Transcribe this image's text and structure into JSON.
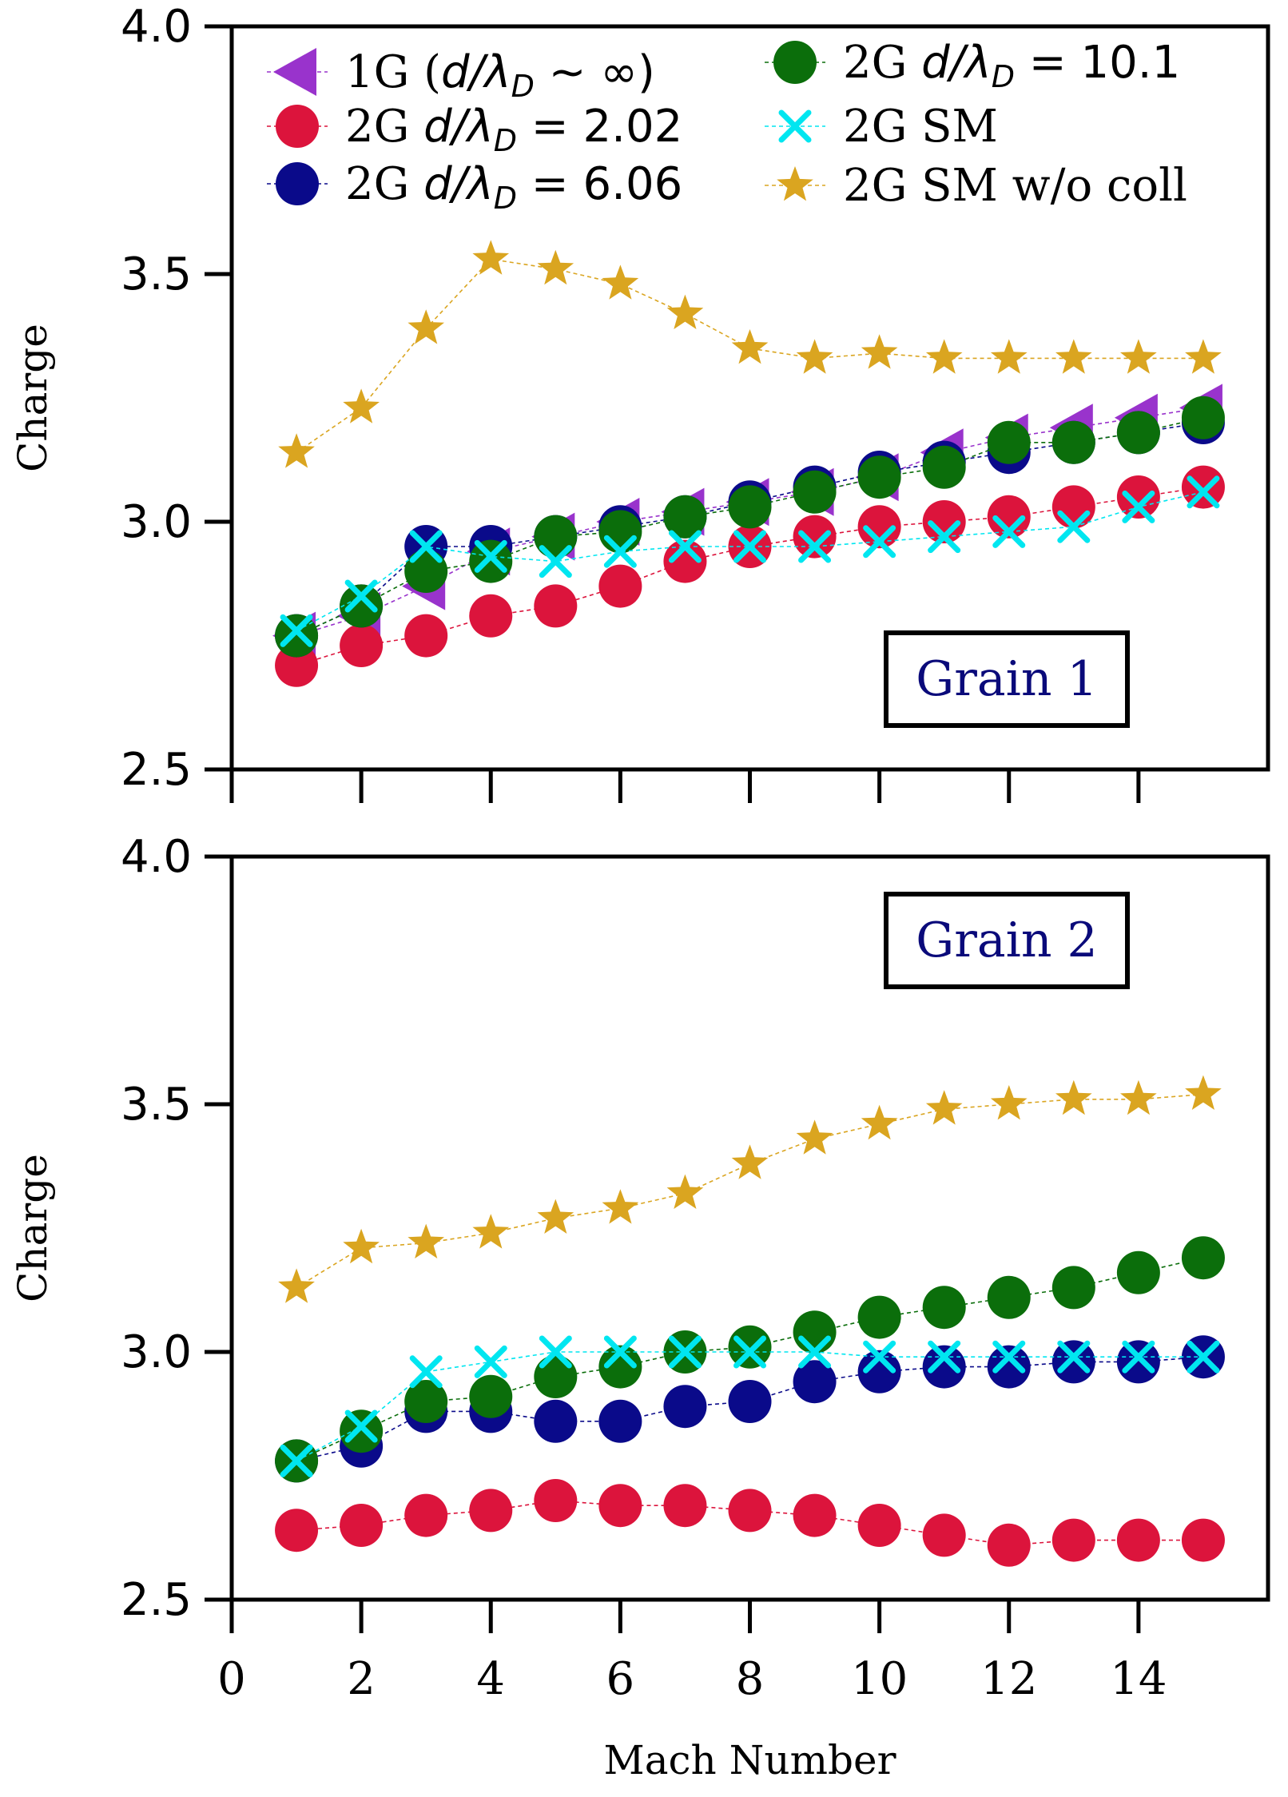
{
  "colors": {
    "1G": "#9933cc",
    "2G d/λD = 2.02": "#dc143c",
    "2G d/λD = 6.06": "#0a0a8a",
    "2G d/λD = 10.1": "#0b6e0b",
    "2G SM": "#00e6f0",
    "2G SM w/o coll": "#daa520",
    "panel_label": "#0a0a7a"
  },
  "chart_data": [
    {
      "type": "scatter",
      "panel": "top",
      "panel_label": "Grain 1",
      "xlabel": "",
      "ylabel": "Charge",
      "xlim": [
        0,
        16
      ],
      "ylim": [
        2.5,
        4.0
      ],
      "yticks": [
        "2.5",
        "3.0",
        "3.5",
        "4.0"
      ],
      "x": [
        1,
        2,
        3,
        4,
        5,
        6,
        7,
        8,
        9,
        10,
        11,
        12,
        13,
        14,
        15
      ],
      "legend": {
        "placement": "top",
        "entries": [
          {
            "key": "1G",
            "prefix": "1G (",
            "italic": "d/λ",
            "sub": "D",
            "suffix": " ~ ∞)",
            "marker": "triangle-left"
          },
          {
            "key": "2G d/λD = 2.02",
            "prefix": "2G ",
            "italic": "d/λ",
            "sub": "D",
            "suffix": " = 2.02",
            "marker": "circle"
          },
          {
            "key": "2G d/λD = 6.06",
            "prefix": "2G ",
            "italic": "d/λ",
            "sub": "D",
            "suffix": " = 6.06",
            "marker": "circle"
          },
          {
            "key": "2G d/λD = 10.1",
            "prefix": "2G ",
            "italic": "d/λ",
            "sub": "D",
            "suffix": " = 10.1",
            "marker": "circle"
          },
          {
            "key": "2G SM",
            "prefix": "2G SM",
            "italic": "",
            "sub": "",
            "suffix": "",
            "marker": "x"
          },
          {
            "key": "2G SM w/o coll",
            "prefix": "2G SM w/o coll",
            "italic": "",
            "sub": "",
            "suffix": "",
            "marker": "star"
          }
        ]
      },
      "series": [
        {
          "name": "1G (d/λD ~ ∞)",
          "key": "1G",
          "marker": "triangle-left",
          "values": [
            2.77,
            2.81,
            2.87,
            2.94,
            2.97,
            3.0,
            3.02,
            3.04,
            3.06,
            3.09,
            3.14,
            3.17,
            3.19,
            3.21,
            3.23
          ]
        },
        {
          "name": "2G d/λD = 2.02",
          "key": "2G d/λD = 2.02",
          "marker": "circle",
          "values": [
            2.71,
            2.75,
            2.77,
            2.81,
            2.83,
            2.87,
            2.92,
            2.95,
            2.97,
            2.99,
            3.0,
            3.01,
            3.03,
            3.05,
            3.07
          ]
        },
        {
          "name": "2G d/λD = 6.06",
          "key": "2G d/λD = 6.06",
          "marker": "circle",
          "values": [
            2.77,
            2.83,
            2.95,
            2.95,
            2.97,
            2.99,
            3.01,
            3.04,
            3.07,
            3.1,
            3.12,
            3.14,
            3.16,
            3.18,
            3.2
          ]
        },
        {
          "name": "2G d/λD = 10.1",
          "key": "2G d/λD = 10.1",
          "marker": "circle",
          "values": [
            2.77,
            2.83,
            2.9,
            2.92,
            2.97,
            2.98,
            3.01,
            3.03,
            3.06,
            3.09,
            3.11,
            3.16,
            3.16,
            3.18,
            3.21
          ]
        },
        {
          "name": "2G SM",
          "key": "2G SM",
          "marker": "x",
          "values": [
            2.78,
            2.85,
            2.95,
            2.93,
            2.92,
            2.94,
            2.95,
            2.95,
            2.95,
            2.96,
            2.97,
            2.98,
            2.99,
            3.03,
            3.06
          ]
        },
        {
          "name": "2G SM w/o coll",
          "key": "2G SM w/o coll",
          "marker": "star",
          "values": [
            3.14,
            3.23,
            3.39,
            3.53,
            3.51,
            3.48,
            3.42,
            3.35,
            3.33,
            3.34,
            3.33,
            3.33,
            3.33,
            3.33,
            3.33
          ]
        }
      ]
    },
    {
      "type": "scatter",
      "panel": "bottom",
      "panel_label": "Grain 2",
      "xlabel": "Mach Number",
      "ylabel": "Charge",
      "xlim": [
        0,
        16
      ],
      "ylim": [
        2.5,
        4.0
      ],
      "xticks": [
        "0",
        "2",
        "4",
        "6",
        "8",
        "10",
        "12",
        "14"
      ],
      "yticks": [
        "2.5",
        "3.0",
        "3.5",
        "4.0"
      ],
      "x": [
        1,
        2,
        3,
        4,
        5,
        6,
        7,
        8,
        9,
        10,
        11,
        12,
        13,
        14,
        15
      ],
      "series": [
        {
          "name": "2G d/λD = 2.02",
          "key": "2G d/λD = 2.02",
          "marker": "circle",
          "values": [
            2.64,
            2.65,
            2.67,
            2.68,
            2.7,
            2.69,
            2.69,
            2.68,
            2.67,
            2.65,
            2.63,
            2.61,
            2.62,
            2.62,
            2.62
          ]
        },
        {
          "name": "2G d/λD = 6.06",
          "key": "2G d/λD = 6.06",
          "marker": "circle",
          "values": [
            2.78,
            2.81,
            2.88,
            2.88,
            2.86,
            2.86,
            2.89,
            2.9,
            2.94,
            2.96,
            2.97,
            2.97,
            2.98,
            2.98,
            2.99
          ]
        },
        {
          "name": "2G d/λD = 10.1",
          "key": "2G d/λD = 10.1",
          "marker": "circle",
          "values": [
            2.78,
            2.84,
            2.9,
            2.91,
            2.95,
            2.97,
            3.0,
            3.01,
            3.04,
            3.07,
            3.09,
            3.11,
            3.13,
            3.16,
            3.19
          ]
        },
        {
          "name": "2G SM",
          "key": "2G SM",
          "marker": "x",
          "values": [
            2.78,
            2.85,
            2.96,
            2.98,
            3.0,
            3.0,
            3.0,
            3.0,
            3.0,
            2.99,
            2.99,
            2.99,
            2.99,
            2.99,
            2.99
          ]
        },
        {
          "name": "2G SM w/o coll",
          "key": "2G SM w/o coll",
          "marker": "star",
          "values": [
            3.13,
            3.21,
            3.22,
            3.24,
            3.27,
            3.29,
            3.32,
            3.38,
            3.43,
            3.46,
            3.49,
            3.5,
            3.51,
            3.51,
            3.52
          ]
        }
      ]
    }
  ]
}
